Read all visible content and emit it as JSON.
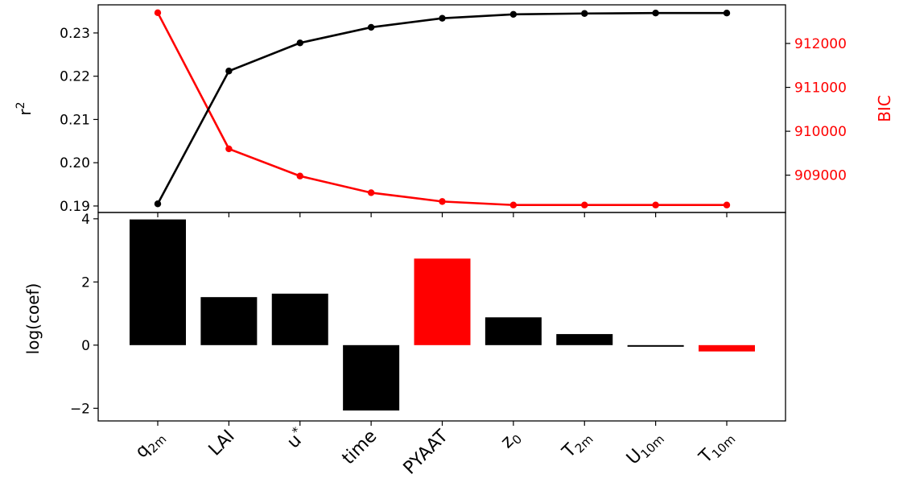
{
  "chart_data": [
    {
      "type": "line",
      "categories": [
        "q_2m",
        "LAI",
        "u*",
        "time",
        "PYAAT",
        "z_0",
        "T_2m",
        "U_10m",
        "T_10m"
      ],
      "ylabel": "r",
      "ylabel_superscript": "2",
      "ylim": [
        0.1885,
        0.2365
      ],
      "yticks": [
        0.19,
        0.2,
        0.21,
        0.22,
        0.23
      ],
      "ytick_labels": [
        "0.19",
        "0.20",
        "0.21",
        "0.22",
        "0.23"
      ],
      "series": [
        {
          "color": "#000000",
          "axis": "left",
          "values": [
            0.1905,
            0.2212,
            0.2277,
            0.2313,
            0.2334,
            0.2343,
            0.2345,
            0.2346,
            0.2346
          ]
        }
      ],
      "secondary_axis": {
        "ylabel": "BIC",
        "color": "#ff0000",
        "ylim": [
          908150,
          912880
        ],
        "yticks": [
          909000,
          910000,
          911000,
          912000
        ],
        "ytick_labels": [
          "909000",
          "910000",
          "911000",
          "912000"
        ],
        "series": [
          {
            "color": "#ff0000",
            "axis": "right",
            "values": [
              912700,
              909600,
              908980,
              908600,
              908400,
              908320,
              908320,
              908320,
              908320
            ]
          }
        ]
      },
      "grid": false
    },
    {
      "type": "bar",
      "categories": [
        "q_2m",
        "LAI",
        "u*",
        "time",
        "PYAAT",
        "z_0",
        "T_2m",
        "U_10m",
        "T_10m"
      ],
      "xtick_labels": [
        {
          "base": "q",
          "sub": "2m",
          "sup": ""
        },
        {
          "base": "LAI",
          "sub": "",
          "sup": ""
        },
        {
          "base": "u",
          "sub": "",
          "sup": "*"
        },
        {
          "base": "time",
          "sub": "",
          "sup": ""
        },
        {
          "base": "PYAAT",
          "sub": "",
          "sup": ""
        },
        {
          "base": "z",
          "sub": "0",
          "sup": ""
        },
        {
          "base": "T",
          "sub": "2m",
          "sup": ""
        },
        {
          "base": "U",
          "sub": "10m",
          "sup": ""
        },
        {
          "base": "T",
          "sub": "10m",
          "sup": ""
        }
      ],
      "values": [
        3.98,
        1.52,
        1.63,
        -2.07,
        2.74,
        0.88,
        0.35,
        -0.05,
        -0.2
      ],
      "colors": [
        "#000000",
        "#000000",
        "#000000",
        "#000000",
        "#ff0000",
        "#000000",
        "#000000",
        "#000000",
        "#ff0000"
      ],
      "ylabel": "log(coef)",
      "ylim": [
        -2.4,
        4.2
      ],
      "yticks": [
        -2,
        0,
        2,
        4
      ],
      "ytick_labels": [
        "−2",
        "0",
        "2",
        "4"
      ],
      "grid": false
    }
  ]
}
